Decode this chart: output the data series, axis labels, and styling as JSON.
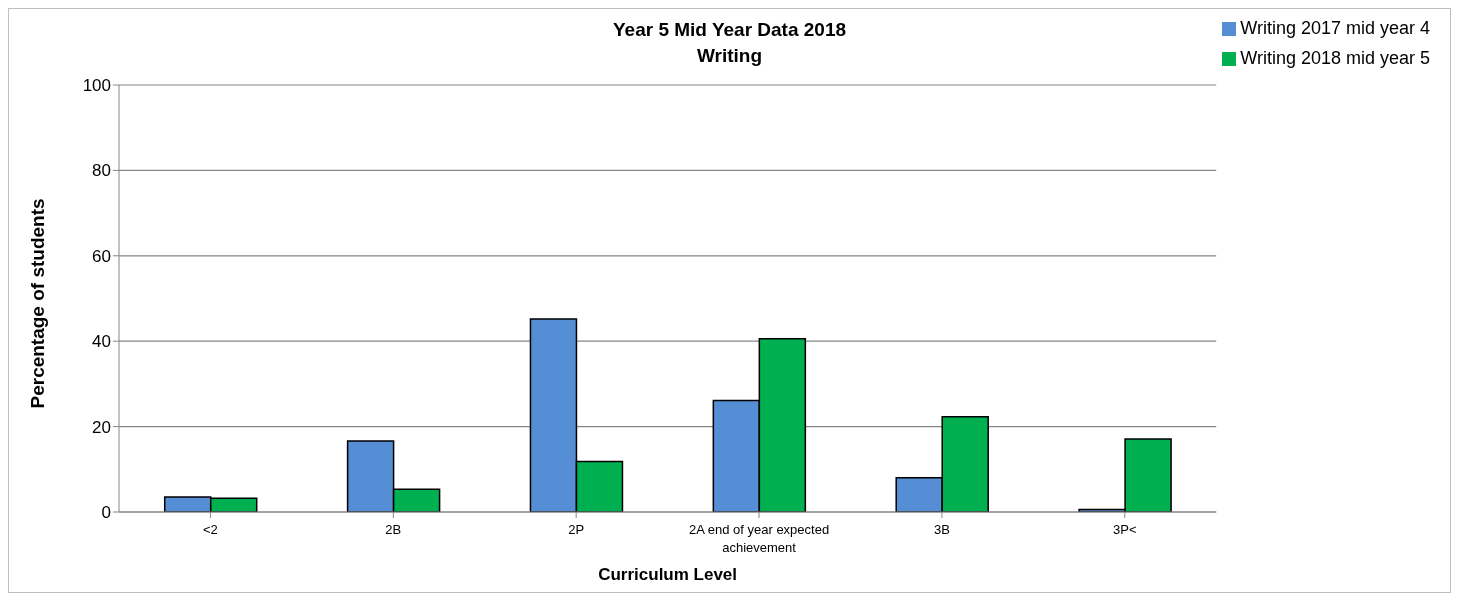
{
  "chart_data": {
    "type": "bar",
    "title": "Year 5 Mid Year Data 2018",
    "subtitle": "Writing",
    "xlabel": "Curriculum Level",
    "ylabel": "Percentage of students",
    "categories": [
      "<2",
      "2B",
      "2P",
      "2A end of year expected achievement",
      "3B",
      "3P<"
    ],
    "series": [
      {
        "name": "Writing 2017 mid year 4",
        "color": "#558ed5",
        "values": [
          3.5,
          16.6,
          45.2,
          26.1,
          8.0,
          0.6
        ]
      },
      {
        "name": "Writing 2018 mid year 5",
        "color": "#00b050",
        "values": [
          3.2,
          5.3,
          11.8,
          40.6,
          22.3,
          17.1
        ]
      }
    ],
    "ylim": [
      0,
      100
    ],
    "yticks": [
      0,
      20,
      40,
      60,
      80,
      100
    ],
    "grid": "y",
    "legend": "top right"
  }
}
